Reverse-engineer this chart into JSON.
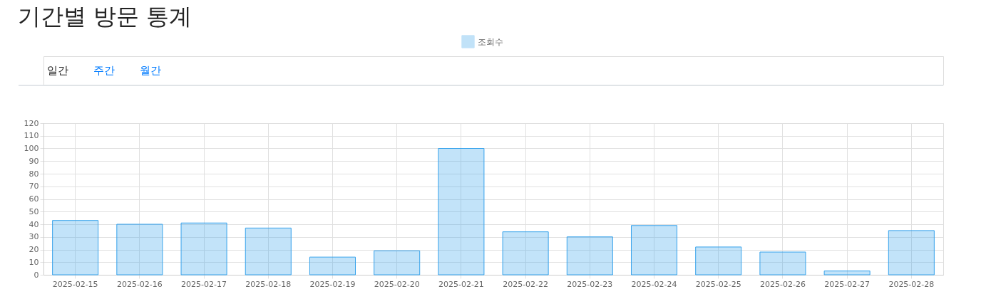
{
  "chart_data": {
    "type": "bar",
    "title": "기간별 방문 통계",
    "annotations": [
      "일간",
      "주간",
      "월간"
    ],
    "categories": [
      "2025-02-15",
      "2025-02-16",
      "2025-02-17",
      "2025-02-18",
      "2025-02-19",
      "2025-02-20",
      "2025-02-21",
      "2025-02-22",
      "2025-02-23",
      "2025-02-24",
      "2025-02-25",
      "2025-02-26",
      "2025-02-27",
      "2025-02-28"
    ],
    "series": [
      {
        "name": "조회수",
        "color": "#36a2eb",
        "values": [
          43,
          40,
          41,
          37,
          14,
          19,
          100,
          34,
          30,
          39,
          22,
          18,
          3,
          35
        ]
      }
    ],
    "ylim": [
      0,
      120
    ],
    "yticks": [
      0,
      10,
      20,
      30,
      40,
      50,
      60,
      70,
      80,
      90,
      100,
      110,
      120
    ],
    "grid": true,
    "legend": "top"
  }
}
